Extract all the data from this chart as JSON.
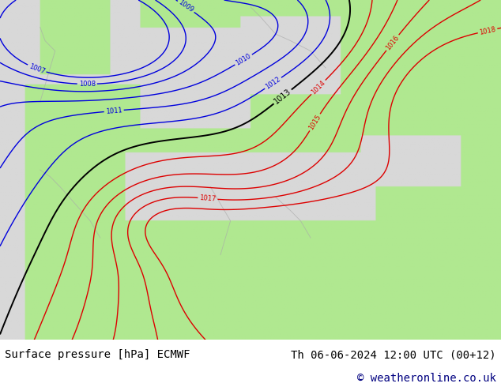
{
  "title_left": "Surface pressure [hPa] ECMWF",
  "title_right": "Th 06-06-2024 12:00 UTC (00+12)",
  "copyright": "© weatheronline.co.uk",
  "land_color": "#b0e890",
  "sea_color": "#d8d8d8",
  "contour_blue_color": "#0000dd",
  "contour_red_color": "#dd0000",
  "contour_black_color": "#000000",
  "footer_text_color": "#000000",
  "copyright_color": "#000080",
  "font_size_footer": 10,
  "figwidth": 6.34,
  "figheight": 4.9,
  "dpi": 100
}
